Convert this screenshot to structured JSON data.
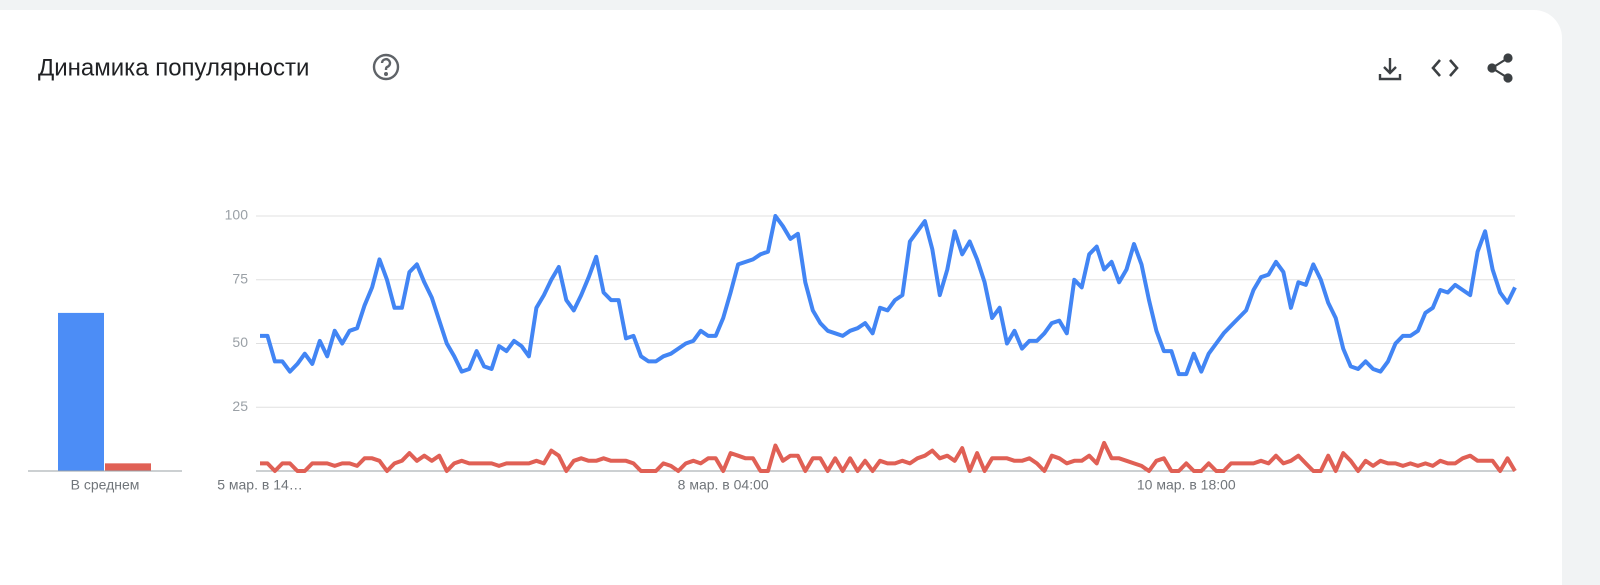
{
  "widget": {
    "title": "Динамика популярности"
  },
  "chart_data": [
    {
      "type": "bar",
      "categories": [
        "В среднем"
      ],
      "series": [
        {
          "color": "#4c8df6",
          "values": [
            62
          ]
        },
        {
          "color": "#e06055",
          "values": [
            3
          ]
        }
      ],
      "ylim": [
        0,
        100
      ]
    },
    {
      "type": "line",
      "categories": [
        "5 мар. в 14…",
        null,
        null,
        null,
        null,
        null,
        null,
        null,
        null,
        null,
        null,
        null,
        null,
        null,
        null,
        null,
        null,
        null,
        null,
        null,
        null,
        null,
        null,
        null,
        null,
        null,
        null,
        null,
        null,
        null,
        null,
        null,
        null,
        null,
        null,
        null,
        null,
        null,
        null,
        null,
        null,
        null,
        null,
        null,
        null,
        null,
        null,
        null,
        null,
        null,
        null,
        null,
        null,
        null,
        null,
        null,
        null,
        null,
        null,
        null,
        null,
        null,
        "8 мар. в 04:00",
        null,
        null,
        null,
        null,
        null,
        null,
        null,
        null,
        null,
        null,
        null,
        null,
        null,
        null,
        null,
        null,
        null,
        null,
        null,
        null,
        null,
        null,
        null,
        null,
        null,
        null,
        null,
        null,
        null,
        null,
        null,
        null,
        null,
        null,
        null,
        null,
        null,
        null,
        null,
        null,
        null,
        null,
        null,
        null,
        null,
        null,
        null,
        null,
        null,
        null,
        null,
        null,
        null,
        null,
        null,
        null,
        null,
        null,
        null,
        null,
        null,
        "10 мар. в 18:00",
        null,
        null,
        null,
        null,
        null,
        null,
        null,
        null,
        null,
        null,
        null,
        null,
        null,
        null,
        null,
        null,
        null,
        null,
        null,
        null,
        null,
        null,
        null,
        null,
        null,
        null,
        null,
        null,
        null,
        null,
        null,
        null,
        null,
        null,
        null,
        null,
        null,
        null,
        null,
        null,
        null,
        null,
        null,
        null
      ],
      "series": [
        {
          "color": "#4285f4",
          "values": [
            53,
            53,
            43,
            43,
            39,
            42,
            46,
            42,
            51,
            45,
            55,
            50,
            55,
            56,
            65,
            72,
            83,
            75,
            64,
            64,
            78,
            81,
            74,
            68,
            59,
            50,
            45,
            39,
            40,
            47,
            41,
            40,
            49,
            47,
            51,
            49,
            45,
            64,
            69,
            75,
            80,
            67,
            63,
            69,
            76,
            84,
            70,
            67,
            67,
            52,
            53,
            45,
            43,
            43,
            45,
            46,
            48,
            50,
            51,
            55,
            53,
            53,
            60,
            70,
            81,
            82,
            83,
            85,
            86,
            100,
            96,
            91,
            93,
            74,
            63,
            58,
            55,
            54,
            53,
            55,
            56,
            58,
            54,
            64,
            63,
            67,
            69,
            90,
            94,
            98,
            87,
            69,
            79,
            94,
            85,
            90,
            83,
            74,
            60,
            64,
            50,
            55,
            48,
            51,
            51,
            54,
            58,
            59,
            54,
            75,
            72,
            85,
            88,
            79,
            82,
            74,
            79,
            89,
            81,
            67,
            55,
            47,
            47,
            38,
            38,
            46,
            39,
            46,
            50,
            54,
            57,
            60,
            63,
            71,
            76,
            77,
            82,
            78,
            64,
            74,
            73,
            81,
            75,
            66,
            60,
            48,
            41,
            40,
            43,
            40,
            39,
            43,
            50,
            53,
            53,
            55,
            62,
            64,
            71,
            70,
            73,
            71,
            69,
            86,
            94,
            79,
            70,
            66,
            72
          ]
        },
        {
          "color": "#e06055",
          "values": [
            3,
            3,
            0,
            3,
            3,
            0,
            0,
            3,
            3,
            3,
            2,
            3,
            3,
            2,
            5,
            5,
            4,
            0,
            3,
            4,
            7,
            4,
            6,
            4,
            6,
            0,
            3,
            4,
            3,
            3,
            3,
            3,
            2,
            3,
            3,
            3,
            3,
            4,
            3,
            8,
            6,
            0,
            4,
            5,
            4,
            4,
            5,
            4,
            4,
            4,
            3,
            0,
            0,
            0,
            3,
            2,
            0,
            3,
            4,
            3,
            5,
            5,
            0,
            7,
            6,
            5,
            5,
            0,
            0,
            10,
            4,
            6,
            6,
            0,
            5,
            5,
            0,
            5,
            0,
            5,
            0,
            4,
            0,
            4,
            3,
            3,
            4,
            3,
            5,
            6,
            8,
            5,
            6,
            4,
            9,
            0,
            7,
            0,
            5,
            5,
            5,
            4,
            4,
            5,
            3,
            0,
            6,
            5,
            3,
            4,
            4,
            6,
            3,
            11,
            5,
            5,
            4,
            3,
            2,
            0,
            4,
            5,
            0,
            0,
            3,
            0,
            0,
            3,
            0,
            0,
            3,
            3,
            3,
            3,
            4,
            3,
            6,
            3,
            4,
            6,
            3,
            0,
            0,
            6,
            0,
            7,
            4,
            0,
            4,
            2,
            4,
            3,
            3,
            2,
            3,
            2,
            3,
            2,
            4,
            3,
            3,
            5,
            6,
            4,
            4,
            4,
            0,
            5,
            0
          ]
        }
      ],
      "ylim": [
        0,
        100
      ],
      "yticks": [
        25,
        50,
        75,
        100
      ],
      "grid": true
    }
  ]
}
